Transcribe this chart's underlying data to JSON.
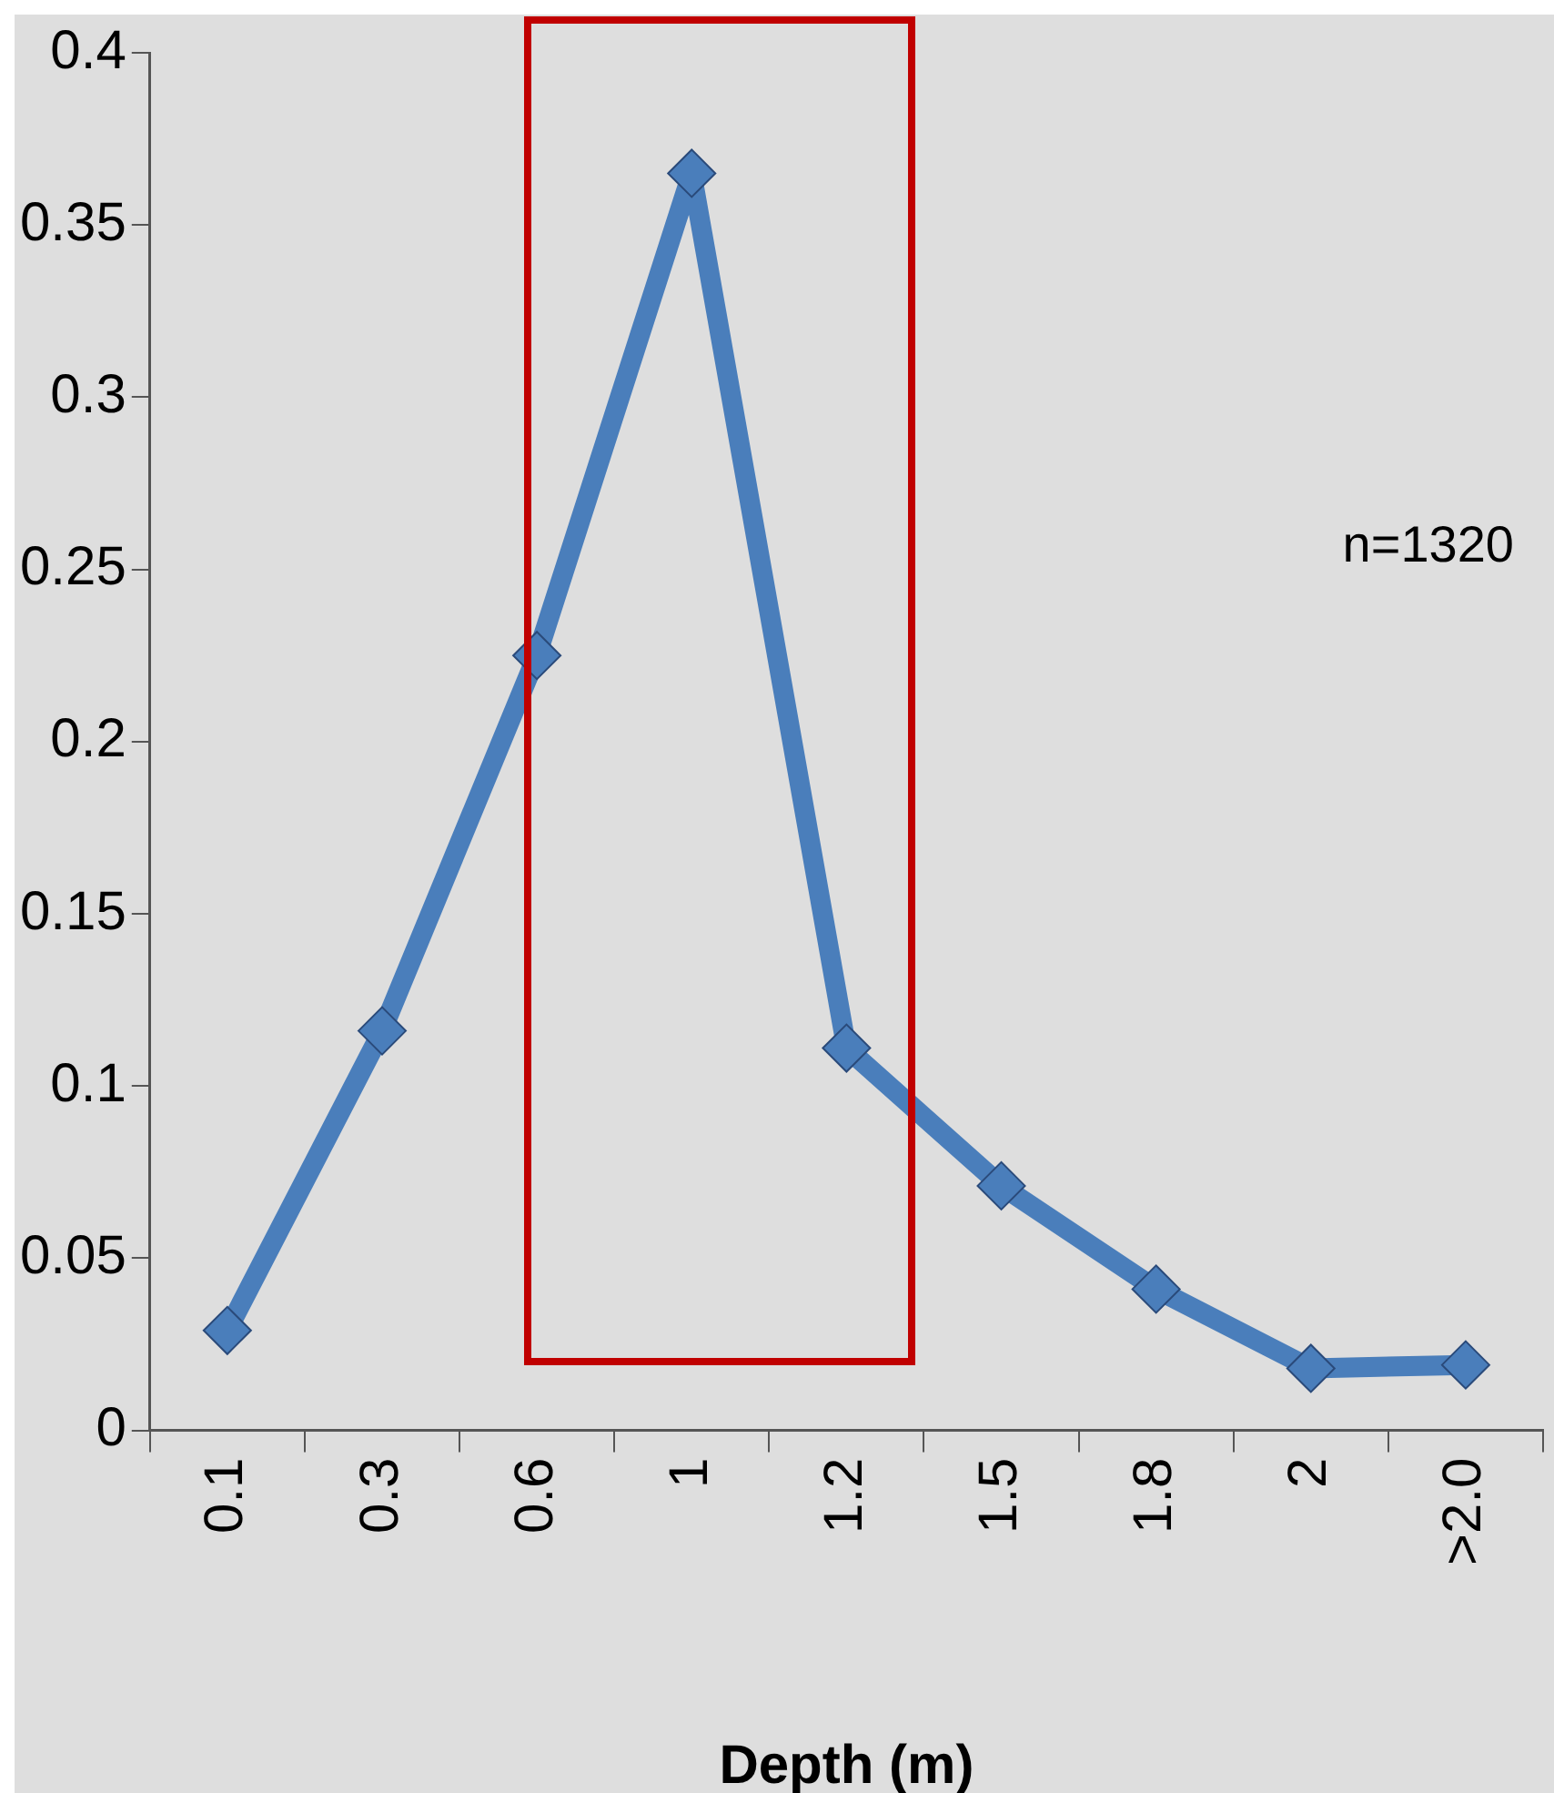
{
  "chart_data": {
    "type": "line",
    "xlabel": "Depth (m)",
    "categories": [
      "0.1",
      "0.3",
      "0.6",
      "1",
      "1.2",
      "1.5",
      "1.8",
      "2",
      ">2.0"
    ],
    "series": [
      {
        "color": "#4a7ebb",
        "values": [
          0.029,
          0.116,
          0.225,
          0.365,
          0.111,
          0.071,
          0.041,
          0.018,
          0.019
        ]
      }
    ],
    "ylim": [
      0,
      0.4
    ],
    "yticks": [
      0,
      0.05,
      0.1,
      0.15,
      0.2,
      0.25,
      0.3,
      0.35,
      0.4
    ],
    "grid": false,
    "legend": false,
    "marker": "diamond",
    "line_style": "solid",
    "annotations": [
      "n=1320"
    ]
  }
}
